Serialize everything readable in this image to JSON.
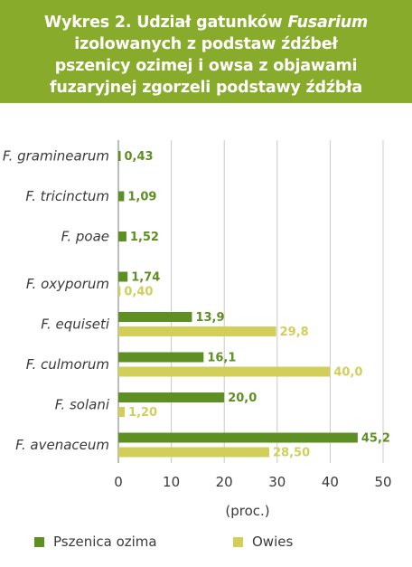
{
  "title": {
    "line1_prefix": "Wykres 2. Udział gatunków ",
    "line1_italic": "Fusarium",
    "line2": "izolowanych z podstaw źdźbeł",
    "line3": "pszenicy ozimej i owsa z objawami",
    "line4": "fuzaryjnej zgorzeli podstawy źdźbła"
  },
  "chart_data": {
    "type": "bar",
    "orientation": "horizontal",
    "categories": [
      "F. graminearum",
      "F. tricinctum",
      "F. poae",
      "F. oxyporum",
      "F. equiseti",
      "F. culmorum",
      "F. solani",
      "F. avenaceum"
    ],
    "series": [
      {
        "name": "Pszenica ozima",
        "color": "#5e8f22",
        "values": [
          0.43,
          1.09,
          1.52,
          1.74,
          13.9,
          16.1,
          20.0,
          45.2
        ],
        "labels": [
          "0,43",
          "1,09",
          "1,52",
          "1,74",
          "13,9",
          "16,1",
          "20,0",
          "45,2"
        ]
      },
      {
        "name": "Owies",
        "color": "#d1cf5a",
        "values": [
          null,
          null,
          null,
          0.4,
          29.8,
          40.0,
          1.2,
          28.5
        ],
        "labels": [
          "",
          "",
          "",
          "0,40",
          "29,8",
          "40,0",
          "1,20",
          "28,50"
        ]
      }
    ],
    "xlim": [
      0,
      50
    ],
    "xticks": [
      0,
      10,
      20,
      30,
      40,
      50
    ],
    "xlabel": "(proc.)",
    "grid": true,
    "legend_position": "bottom"
  }
}
